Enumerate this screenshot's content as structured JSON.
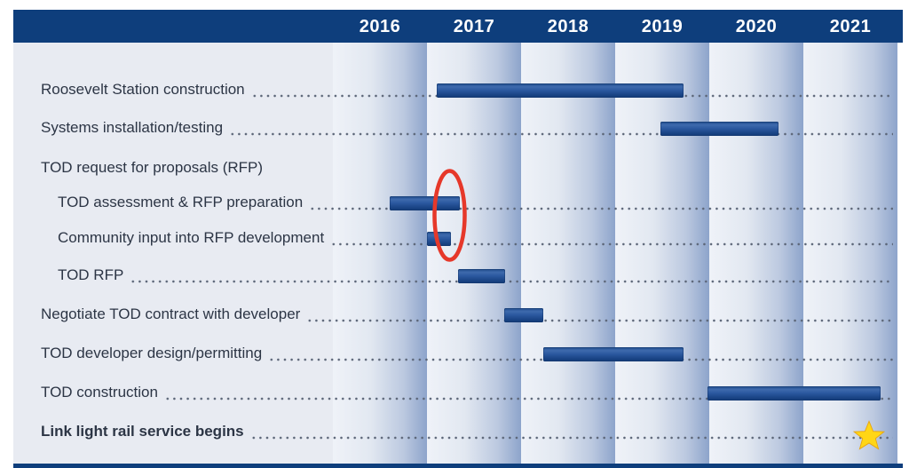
{
  "colors": {
    "header_navy": "#0e3e7c",
    "bar_blue": "#2a579e",
    "band_light": "#eff2f8",
    "band_dark": "#8da4cb",
    "label_panel": "#e8ebf2",
    "label_text": "#2c3545",
    "leader_dot": "#5c6678",
    "annotation_red": "#e6382a",
    "star_gold": "#ffd616"
  },
  "chart_data": {
    "type": "gantt",
    "title": "",
    "x_axis": {
      "position": "top",
      "labels": [
        "2016",
        "2017",
        "2018",
        "2019",
        "2020",
        "2021"
      ],
      "range": [
        2016,
        2022
      ],
      "grid": "alternating-gradient-year-bands"
    },
    "tasks": [
      {
        "label": "Roosevelt Station construction",
        "indent": 0,
        "bold": false,
        "leader_dots": true,
        "bar": {
          "start": 2017.1,
          "end": 2019.73
        }
      },
      {
        "label": "Systems installation/testing",
        "indent": 0,
        "bold": false,
        "leader_dots": true,
        "bar": {
          "start": 2019.48,
          "end": 2020.74
        }
      },
      {
        "label": "TOD request for proposals (RFP)",
        "indent": 0,
        "bold": false,
        "leader_dots": false,
        "bar": null
      },
      {
        "label": "TOD assessment & RFP preparation",
        "indent": 1,
        "bold": false,
        "leader_dots": true,
        "bar": {
          "start": 2016.6,
          "end": 2017.35
        }
      },
      {
        "label": "Community input into RFP development",
        "indent": 1,
        "bold": false,
        "leader_dots": true,
        "bar": {
          "start": 2017.0,
          "end": 2017.25
        }
      },
      {
        "label": "TOD RFP",
        "indent": 1,
        "bold": false,
        "leader_dots": true,
        "bar": {
          "start": 2017.33,
          "end": 2017.83
        }
      },
      {
        "label": "Negotiate TOD contract with developer",
        "indent": 0,
        "bold": false,
        "leader_dots": true,
        "bar": {
          "start": 2017.82,
          "end": 2018.24
        }
      },
      {
        "label": "TOD developer design/permitting",
        "indent": 0,
        "bold": false,
        "leader_dots": true,
        "bar": {
          "start": 2018.24,
          "end": 2019.73
        }
      },
      {
        "label": "TOD construction",
        "indent": 0,
        "bold": false,
        "leader_dots": true,
        "bar": {
          "start": 2019.98,
          "end": 2021.82
        }
      },
      {
        "label": "Link light rail service begins",
        "indent": 0,
        "bold": true,
        "leader_dots": true,
        "bar": null,
        "milestone": {
          "type": "star",
          "year": 2021.7
        }
      }
    ],
    "annotations": [
      {
        "type": "ellipse",
        "color": "#e6382a",
        "at_year": 2017.24,
        "highlights": [
          "TOD assessment & RFP preparation",
          "Community input into RFP development"
        ]
      }
    ],
    "legend": null
  }
}
